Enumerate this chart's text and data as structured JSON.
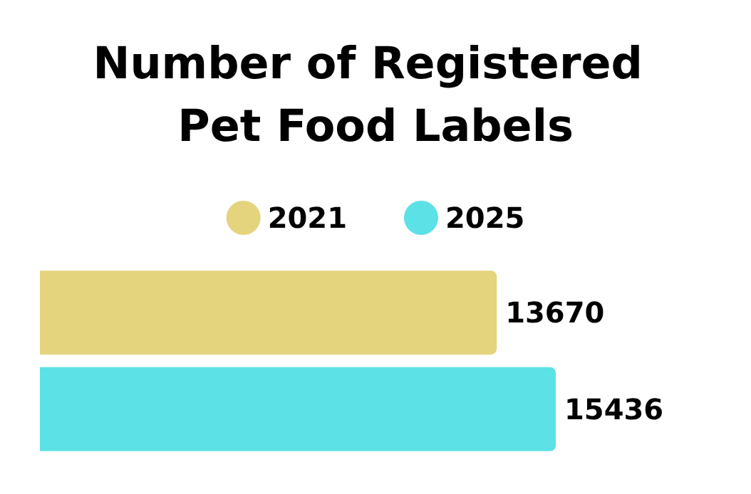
{
  "chart_data": {
    "type": "bar",
    "title": "Number of Registered Pet Food Labels",
    "orientation": "horizontal",
    "categories": [
      null
    ],
    "series": [
      {
        "name": "2021",
        "color": "#e5d47e",
        "values": [
          13670
        ]
      },
      {
        "name": "2025",
        "color": "#5ce1e6",
        "values": [
          15436
        ]
      }
    ],
    "data_labels": true,
    "legend": "top"
  }
}
